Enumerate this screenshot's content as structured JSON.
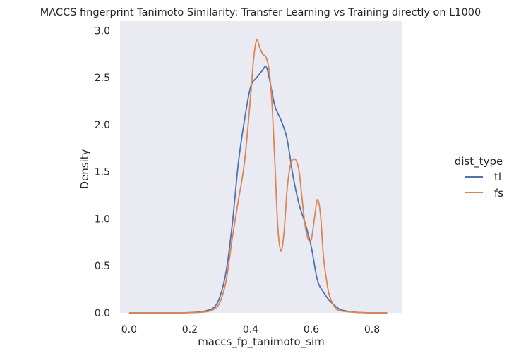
{
  "colors": {
    "background": "#eaeaf2",
    "tl": "#4c72b0",
    "fs": "#dd8452",
    "text": "#262626"
  },
  "chart_data": {
    "type": "line",
    "title": "MACCS fingerprint Tanimoto Similarity: Transfer Learning vs Training directly on L1000",
    "xlabel": "maccs_fp_tanimoto_sim",
    "ylabel": "Density",
    "xlim": [
      -0.03,
      0.9
    ],
    "ylim": [
      0,
      3.1
    ],
    "xticks": [
      "0.0",
      "0.2",
      "0.4",
      "0.6",
      "0.8"
    ],
    "yticks": [
      "0.0",
      "0.5",
      "1.0",
      "1.5",
      "2.0",
      "2.5",
      "3.0"
    ],
    "grid": false,
    "legend": {
      "title": "dist_type",
      "position": "right",
      "entries": [
        "tl",
        "fs"
      ]
    },
    "series": [
      {
        "name": "tl",
        "color": "#4c72b0",
        "x": [
          0.0,
          0.1,
          0.2,
          0.25,
          0.28,
          0.3,
          0.32,
          0.34,
          0.36,
          0.38,
          0.4,
          0.42,
          0.44,
          0.45,
          0.46,
          0.48,
          0.5,
          0.52,
          0.54,
          0.56,
          0.58,
          0.6,
          0.62,
          0.64,
          0.66,
          0.68,
          0.7,
          0.75,
          0.8,
          0.85
        ],
        "values": [
          0.0,
          0.0,
          0.003,
          0.02,
          0.06,
          0.18,
          0.45,
          0.95,
          1.6,
          2.05,
          2.4,
          2.5,
          2.58,
          2.62,
          2.52,
          2.2,
          2.05,
          1.85,
          1.45,
          1.15,
          0.95,
          0.7,
          0.35,
          0.22,
          0.13,
          0.07,
          0.03,
          0.005,
          0.0,
          0.0
        ]
      },
      {
        "name": "fs",
        "color": "#dd8452",
        "x": [
          0.0,
          0.1,
          0.2,
          0.25,
          0.28,
          0.3,
          0.32,
          0.34,
          0.36,
          0.38,
          0.4,
          0.41,
          0.42,
          0.43,
          0.44,
          0.45,
          0.46,
          0.47,
          0.48,
          0.49,
          0.5,
          0.51,
          0.52,
          0.53,
          0.54,
          0.55,
          0.56,
          0.57,
          0.58,
          0.59,
          0.6,
          0.61,
          0.62,
          0.63,
          0.64,
          0.65,
          0.66,
          0.68,
          0.7,
          0.75,
          0.8,
          0.85
        ],
        "values": [
          0.0,
          0.0,
          0.002,
          0.01,
          0.04,
          0.12,
          0.35,
          0.8,
          1.2,
          1.6,
          2.3,
          2.7,
          2.9,
          2.82,
          2.75,
          2.72,
          2.6,
          2.25,
          1.6,
          0.9,
          0.66,
          0.85,
          1.3,
          1.55,
          1.63,
          1.62,
          1.5,
          1.2,
          0.92,
          0.78,
          0.78,
          1.0,
          1.2,
          1.05,
          0.6,
          0.35,
          0.18,
          0.05,
          0.02,
          0.005,
          0.0,
          0.0
        ]
      }
    ]
  }
}
